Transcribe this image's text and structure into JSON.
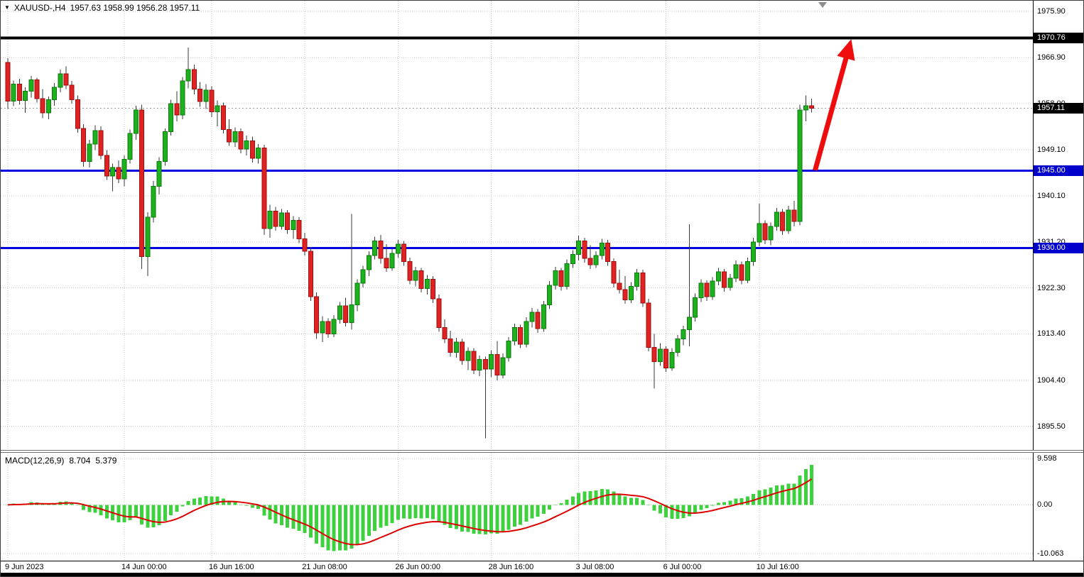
{
  "window": {
    "bg": "#ffffff"
  },
  "header": {
    "marker": "▼",
    "title": "XAUUSD-,H4",
    "ohlc": "1957.63 1958.99 1956.28 1957.11"
  },
  "colors": {
    "bull": "#1db11d",
    "bull_border": "#0c7a0c",
    "bear": "#e02222",
    "bear_border": "#9c0f0f",
    "wick": "#3a3a3a",
    "grid": "#c9c9c9",
    "current_dash": "#9a9a9a",
    "arrow": "#ee0c0c",
    "macd_hist": "#3dd13d",
    "macd_signal": "#dd0000"
  },
  "chart_data": {
    "type": "candlestick",
    "symbol": "XAUUSD",
    "timeframe": "H4",
    "price_axis": {
      "visible_top": 1977.95,
      "visible_bottom": 1890.9,
      "ticks": [
        {
          "value": 1975.9,
          "label": "1975.90"
        },
        {
          "value": 1966.9,
          "label": "1966.90"
        },
        {
          "value": 1958.0,
          "label": "1958.00"
        },
        {
          "value": 1949.1,
          "label": "1949.10"
        },
        {
          "value": 1940.1,
          "label": "1940.10"
        },
        {
          "value": 1931.2,
          "label": "1931.20"
        },
        {
          "value": 1922.3,
          "label": "1922.30"
        },
        {
          "value": 1913.4,
          "label": "1913.40"
        },
        {
          "value": 1904.4,
          "label": "1904.40"
        },
        {
          "value": 1895.5,
          "label": "1895.50"
        }
      ]
    },
    "levels": [
      {
        "price": 1970.76,
        "color": "#000000",
        "width": 4
      },
      {
        "price": 1945.0,
        "color": "#0000e0",
        "width": 3
      },
      {
        "price": 1930.0,
        "color": "#0000e0",
        "width": 3
      }
    ],
    "badges": [
      {
        "price": 1970.76,
        "label": "1970.76",
        "bg": "#000000"
      },
      {
        "price": 1957.11,
        "label": "1957.11",
        "bg": "#000000"
      },
      {
        "price": 1945.0,
        "label": "1945.00",
        "bg": "#0000cc"
      },
      {
        "price": 1930.0,
        "label": "1930.00",
        "bg": "#0000cc"
      }
    ],
    "current_price": 1957.11,
    "objects": {
      "arrow": {
        "from": {
          "bar": 138.6,
          "price": 1945.1
        },
        "to": {
          "bar": 144.8,
          "price": 1970.5
        }
      }
    },
    "time_axis": {
      "ticks": [
        {
          "bar": 0,
          "label": "9 Jun 2023"
        },
        {
          "bar": 20,
          "label": "14 Jun 00:00"
        },
        {
          "bar": 35,
          "label": "16 Jun 16:00"
        },
        {
          "bar": 51,
          "label": "21 Jun 08:00"
        },
        {
          "bar": 67,
          "label": "26 Jun 00:00"
        },
        {
          "bar": 83,
          "label": "28 Jun 16:00"
        },
        {
          "bar": 98,
          "label": "3 Jul 08:00"
        },
        {
          "bar": 113,
          "label": "6 Jul 00:00"
        },
        {
          "bar": 129,
          "label": "10 Jul 16:00"
        }
      ]
    },
    "candles": [
      [
        1966.0,
        1966.8,
        1957.0,
        1958.5
      ],
      [
        1958.5,
        1962.5,
        1957.5,
        1961.8
      ],
      [
        1961.8,
        1962.8,
        1957.8,
        1958.6
      ],
      [
        1958.6,
        1961.2,
        1956.2,
        1960.4
      ],
      [
        1960.4,
        1963.4,
        1959.2,
        1962.6
      ],
      [
        1962.6,
        1963.0,
        1958.2,
        1959.0
      ],
      [
        1959.0,
        1960.8,
        1955.2,
        1956.2
      ],
      [
        1956.2,
        1959.4,
        1955.0,
        1958.8
      ],
      [
        1958.8,
        1962.0,
        1957.6,
        1961.2
      ],
      [
        1961.2,
        1964.6,
        1960.2,
        1963.8
      ],
      [
        1963.8,
        1965.2,
        1960.8,
        1961.6
      ],
      [
        1961.6,
        1962.4,
        1958.0,
        1958.8
      ],
      [
        1958.8,
        1959.6,
        1952.4,
        1953.2
      ],
      [
        1953.2,
        1954.0,
        1945.8,
        1946.8
      ],
      [
        1946.8,
        1951.0,
        1945.6,
        1950.2
      ],
      [
        1950.2,
        1953.8,
        1949.0,
        1952.8
      ],
      [
        1952.8,
        1953.6,
        1947.2,
        1948.0
      ],
      [
        1948.0,
        1949.0,
        1943.2,
        1944.0
      ],
      [
        1944.0,
        1946.4,
        1941.0,
        1945.6
      ],
      [
        1945.6,
        1947.0,
        1942.6,
        1943.4
      ],
      [
        1943.4,
        1948.0,
        1942.0,
        1947.2
      ],
      [
        1947.2,
        1953.0,
        1946.4,
        1952.2
      ],
      [
        1952.2,
        1957.6,
        1951.0,
        1956.8
      ],
      [
        1956.8,
        1957.8,
        1926.0,
        1928.4
      ],
      [
        1928.4,
        1937.0,
        1924.6,
        1936.0
      ],
      [
        1936.0,
        1943.0,
        1935.0,
        1942.0
      ],
      [
        1942.0,
        1947.6,
        1940.4,
        1946.8
      ],
      [
        1946.8,
        1953.2,
        1946.0,
        1952.6
      ],
      [
        1952.6,
        1958.8,
        1951.8,
        1958.0
      ],
      [
        1958.0,
        1960.4,
        1954.6,
        1955.8
      ],
      [
        1955.8,
        1963.2,
        1955.0,
        1962.4
      ],
      [
        1962.4,
        1968.9,
        1961.0,
        1964.6
      ],
      [
        1964.6,
        1965.6,
        1959.8,
        1960.8
      ],
      [
        1960.8,
        1962.2,
        1957.4,
        1958.4
      ],
      [
        1958.4,
        1961.8,
        1957.0,
        1960.6
      ],
      [
        1960.6,
        1961.4,
        1955.4,
        1956.4
      ],
      [
        1956.4,
        1958.6,
        1953.6,
        1957.6
      ],
      [
        1957.6,
        1958.2,
        1952.2,
        1953.0
      ],
      [
        1953.0,
        1955.0,
        1949.8,
        1950.6
      ],
      [
        1950.6,
        1953.4,
        1949.6,
        1952.6
      ],
      [
        1952.6,
        1953.2,
        1948.4,
        1949.2
      ],
      [
        1949.2,
        1951.8,
        1948.0,
        1950.8
      ],
      [
        1950.8,
        1951.6,
        1946.6,
        1947.4
      ],
      [
        1947.4,
        1950.2,
        1946.4,
        1949.4
      ],
      [
        1949.4,
        1950.0,
        1932.6,
        1933.8
      ],
      [
        1933.8,
        1938.4,
        1932.0,
        1937.2
      ],
      [
        1937.2,
        1938.0,
        1933.4,
        1934.2
      ],
      [
        1934.2,
        1937.6,
        1933.6,
        1936.8
      ],
      [
        1936.8,
        1937.4,
        1932.8,
        1933.6
      ],
      [
        1933.6,
        1936.2,
        1931.8,
        1935.4
      ],
      [
        1935.4,
        1936.0,
        1931.0,
        1931.8
      ],
      [
        1931.8,
        1933.0,
        1928.6,
        1929.4
      ],
      [
        1929.4,
        1930.2,
        1919.8,
        1920.6
      ],
      [
        1920.6,
        1921.4,
        1912.4,
        1913.6
      ],
      [
        1913.6,
        1916.8,
        1911.8,
        1915.8
      ],
      [
        1915.8,
        1916.4,
        1912.6,
        1913.4
      ],
      [
        1913.4,
        1917.0,
        1912.8,
        1916.2
      ],
      [
        1916.2,
        1919.6,
        1915.4,
        1918.8
      ],
      [
        1918.8,
        1920.4,
        1914.8,
        1915.6
      ],
      [
        1915.6,
        1936.6,
        1914.2,
        1919.0
      ],
      [
        1919.0,
        1924.0,
        1917.8,
        1923.2
      ],
      [
        1923.2,
        1926.6,
        1922.4,
        1925.8
      ],
      [
        1925.8,
        1929.4,
        1924.6,
        1928.6
      ],
      [
        1928.6,
        1932.2,
        1927.8,
        1931.4
      ],
      [
        1931.4,
        1932.6,
        1927.0,
        1928.0
      ],
      [
        1928.0,
        1930.8,
        1925.4,
        1926.2
      ],
      [
        1926.2,
        1929.8,
        1925.6,
        1929.0
      ],
      [
        1929.0,
        1931.6,
        1928.2,
        1930.8
      ],
      [
        1930.8,
        1931.4,
        1926.6,
        1927.4
      ],
      [
        1927.4,
        1928.2,
        1923.0,
        1923.8
      ],
      [
        1923.8,
        1926.4,
        1922.6,
        1925.6
      ],
      [
        1925.6,
        1926.2,
        1921.4,
        1922.2
      ],
      [
        1922.2,
        1924.8,
        1921.0,
        1924.0
      ],
      [
        1924.0,
        1924.6,
        1919.4,
        1920.2
      ],
      [
        1920.2,
        1921.0,
        1913.8,
        1914.6
      ],
      [
        1914.6,
        1916.2,
        1911.6,
        1912.4
      ],
      [
        1912.4,
        1914.0,
        1909.0,
        1909.8
      ],
      [
        1909.8,
        1912.6,
        1908.8,
        1911.8
      ],
      [
        1911.8,
        1912.4,
        1907.4,
        1908.2
      ],
      [
        1908.2,
        1910.8,
        1906.4,
        1910.0
      ],
      [
        1910.0,
        1910.6,
        1905.6,
        1906.4
      ],
      [
        1906.4,
        1909.2,
        1905.2,
        1908.4
      ],
      [
        1908.4,
        1909.0,
        1893.2,
        1906.6
      ],
      [
        1906.6,
        1910.2,
        1905.0,
        1909.4
      ],
      [
        1909.4,
        1912.0,
        1904.4,
        1905.4
      ],
      [
        1905.4,
        1909.6,
        1904.8,
        1908.8
      ],
      [
        1908.8,
        1912.8,
        1908.0,
        1912.0
      ],
      [
        1912.0,
        1915.4,
        1911.2,
        1914.6
      ],
      [
        1914.6,
        1915.2,
        1910.6,
        1911.4
      ],
      [
        1911.4,
        1916.6,
        1910.8,
        1915.8
      ],
      [
        1915.8,
        1918.4,
        1914.6,
        1917.6
      ],
      [
        1917.6,
        1918.2,
        1913.6,
        1914.4
      ],
      [
        1914.4,
        1919.8,
        1913.8,
        1919.0
      ],
      [
        1919.0,
        1923.6,
        1918.2,
        1922.8
      ],
      [
        1922.8,
        1926.4,
        1922.0,
        1925.6
      ],
      [
        1925.6,
        1926.2,
        1921.8,
        1922.6
      ],
      [
        1922.6,
        1927.8,
        1922.0,
        1927.0
      ],
      [
        1927.0,
        1929.6,
        1926.2,
        1928.8
      ],
      [
        1928.8,
        1932.4,
        1927.6,
        1931.4
      ],
      [
        1931.4,
        1932.0,
        1927.2,
        1928.0
      ],
      [
        1928.0,
        1930.6,
        1926.0,
        1926.8
      ],
      [
        1926.8,
        1929.4,
        1926.2,
        1928.6
      ],
      [
        1928.6,
        1931.8,
        1927.8,
        1931.0
      ],
      [
        1931.0,
        1931.6,
        1926.6,
        1927.4
      ],
      [
        1927.4,
        1928.0,
        1922.4,
        1923.2
      ],
      [
        1923.2,
        1925.8,
        1921.2,
        1922.0
      ],
      [
        1922.0,
        1924.6,
        1919.2,
        1920.0
      ],
      [
        1920.0,
        1923.4,
        1919.4,
        1922.6
      ],
      [
        1922.6,
        1926.0,
        1921.8,
        1925.2
      ],
      [
        1925.2,
        1925.8,
        1918.6,
        1919.4
      ],
      [
        1919.4,
        1920.2,
        1910.0,
        1910.8
      ],
      [
        1910.8,
        1913.4,
        1902.8,
        1908.0
      ],
      [
        1908.0,
        1911.6,
        1907.2,
        1910.4
      ],
      [
        1910.4,
        1911.0,
        1906.0,
        1906.8
      ],
      [
        1906.8,
        1910.6,
        1906.2,
        1909.8
      ],
      [
        1909.8,
        1913.2,
        1909.0,
        1912.4
      ],
      [
        1912.4,
        1915.0,
        1911.2,
        1914.2
      ],
      [
        1914.2,
        1934.6,
        1911.0,
        1916.6
      ],
      [
        1916.6,
        1921.2,
        1915.8,
        1920.4
      ],
      [
        1920.4,
        1924.0,
        1919.6,
        1923.2
      ],
      [
        1923.2,
        1923.8,
        1919.8,
        1920.6
      ],
      [
        1920.6,
        1924.4,
        1920.0,
        1923.6
      ],
      [
        1923.6,
        1926.2,
        1922.8,
        1925.4
      ],
      [
        1925.4,
        1926.0,
        1921.6,
        1922.4
      ],
      [
        1922.4,
        1925.0,
        1921.8,
        1924.2
      ],
      [
        1924.2,
        1927.6,
        1923.4,
        1926.8
      ],
      [
        1926.8,
        1927.4,
        1923.0,
        1923.8
      ],
      [
        1923.8,
        1928.2,
        1923.2,
        1927.4
      ],
      [
        1927.4,
        1932.0,
        1926.6,
        1931.2
      ],
      [
        1931.2,
        1938.6,
        1930.4,
        1934.8
      ],
      [
        1934.8,
        1935.4,
        1930.8,
        1931.6
      ],
      [
        1931.6,
        1935.0,
        1930.6,
        1934.2
      ],
      [
        1934.2,
        1937.8,
        1933.4,
        1937.0
      ],
      [
        1937.0,
        1937.6,
        1932.6,
        1933.4
      ],
      [
        1933.4,
        1938.2,
        1932.8,
        1937.4
      ],
      [
        1937.4,
        1939.2,
        1934.2,
        1935.2
      ],
      [
        1935.2,
        1957.8,
        1934.4,
        1956.8
      ],
      [
        1956.8,
        1959.6,
        1954.6,
        1957.63
      ],
      [
        1957.63,
        1958.99,
        1956.28,
        1957.11
      ]
    ],
    "macd": {
      "label": "MACD(12,26,9)",
      "value_main": "8.704",
      "value_signal": "5.379",
      "params": [
        12,
        26,
        9
      ],
      "axis": {
        "max": 9.598,
        "min": -10.063,
        "ticks": [
          {
            "value": 9.598,
            "label": "9.598"
          },
          {
            "value": 0,
            "label": "0.00"
          },
          {
            "value": -10.063,
            "label": "-10.063"
          }
        ]
      }
    }
  }
}
